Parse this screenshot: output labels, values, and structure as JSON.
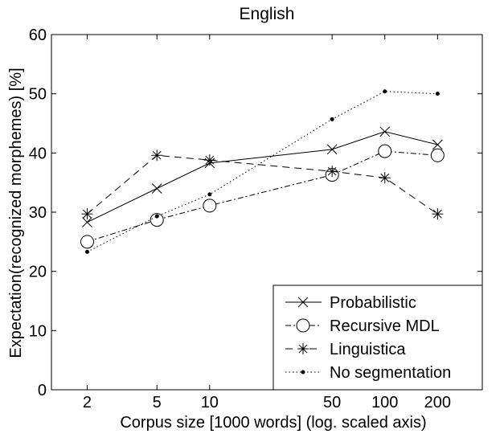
{
  "chart_data": {
    "type": "line",
    "title": "English",
    "xlabel": "Corpus size [1000 words]  (log. scaled axis)",
    "ylabel": "Expectation(recognized morphemes) [%]",
    "x_scale": "log",
    "x": [
      2,
      5,
      10,
      50,
      100,
      200
    ],
    "xticks": [
      "2",
      "5",
      "10",
      "50",
      "100",
      "200"
    ],
    "xlim": [
      1.25,
      360
    ],
    "ylim": [
      0,
      60
    ],
    "yticks": [
      "0",
      "10",
      "20",
      "30",
      "40",
      "50",
      "60"
    ],
    "grid": false,
    "legend_position": "bottom-right",
    "series": [
      {
        "name": "Probabilistic",
        "marker": "x",
        "dash": "",
        "values": [
          28.3,
          34.0,
          38.3,
          40.6,
          43.6,
          41.4
        ]
      },
      {
        "name": "Recursive MDL",
        "marker": "circle",
        "dash": "7 3 2 3",
        "values": [
          25.0,
          28.7,
          31.1,
          36.3,
          40.3,
          39.6
        ]
      },
      {
        "name": "Linguistica",
        "marker": "star",
        "dash": "9 6",
        "values": [
          29.7,
          39.6,
          38.8,
          36.9,
          35.8,
          29.7
        ]
      },
      {
        "name": "No segmentation",
        "marker": "dot",
        "dash": "1.5 3",
        "values": [
          23.3,
          29.3,
          33.0,
          45.7,
          50.4,
          50.0
        ]
      }
    ]
  }
}
